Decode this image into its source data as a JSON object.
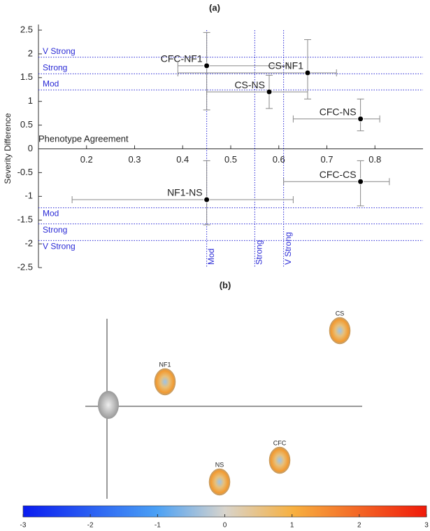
{
  "chart_data": [
    {
      "type": "errorscatter",
      "title": "(a)",
      "ylabel": "Severity Difference",
      "xlabel": "Phenotype Agreement",
      "xlim": [
        0.1,
        0.9
      ],
      "ylim": [
        -2.5,
        2.5
      ],
      "xticks": [
        0.2,
        0.3,
        0.4,
        0.5,
        0.6,
        0.7,
        0.8
      ],
      "yticks": [
        2.5,
        2,
        1.5,
        1,
        0.5,
        0,
        -0.5,
        -1,
        -1.5,
        -2,
        -2.5
      ],
      "color": "#000000",
      "threshold_color": "#2b2bd6",
      "points": [
        {
          "name": "CFC-NF1",
          "x": 0.45,
          "y": 1.75,
          "xlow": 0.39,
          "xhigh": 0.62,
          "ylow": 0.82,
          "yhigh": 2.45
        },
        {
          "name": "CS-NF1",
          "x": 0.66,
          "y": 1.6,
          "xlow": 0.39,
          "xhigh": 0.72,
          "ylow": 1.05,
          "yhigh": 2.3
        },
        {
          "name": "CS-NS",
          "x": 0.58,
          "y": 1.2,
          "xlow": 0.45,
          "xhigh": 0.66,
          "ylow": 0.85,
          "yhigh": 1.55
        },
        {
          "name": "CFC-NS",
          "x": 0.77,
          "y": 0.63,
          "xlow": 0.63,
          "xhigh": 0.81,
          "ylow": 0.38,
          "yhigh": 1.05
        },
        {
          "name": "CFC-CS",
          "x": 0.77,
          "y": -0.69,
          "xlow": 0.61,
          "xhigh": 0.83,
          "ylow": -1.2,
          "yhigh": -0.25
        },
        {
          "name": "NF1-NS",
          "x": 0.45,
          "y": -1.07,
          "xlow": 0.17,
          "xhigh": 0.63,
          "ylow": -1.6,
          "yhigh": -0.25
        }
      ],
      "xthresholds": [
        {
          "value": 0.45,
          "label": "Mod"
        },
        {
          "value": 0.55,
          "label": "Strong"
        },
        {
          "value": 0.61,
          "label": "V Strong"
        }
      ],
      "ythresholds": [
        {
          "value": 1.93,
          "label": "V Strong"
        },
        {
          "value": 1.58,
          "label": "Strong"
        },
        {
          "value": 1.24,
          "label": "Mod"
        },
        {
          "value": -1.24,
          "label": "Mod"
        },
        {
          "value": -1.58,
          "label": "Strong"
        },
        {
          "value": -1.93,
          "label": "V Strong"
        }
      ]
    },
    {
      "type": "facemap",
      "title": "(b)",
      "faces": [
        {
          "label": "NF1"
        },
        {
          "label": "CS"
        },
        {
          "label": "CFC"
        },
        {
          "label": "NS"
        }
      ],
      "colorbar": {
        "lim": [
          -3,
          3
        ],
        "ticks": [
          -3,
          -2,
          -1,
          0,
          1,
          2,
          3
        ]
      }
    }
  ]
}
